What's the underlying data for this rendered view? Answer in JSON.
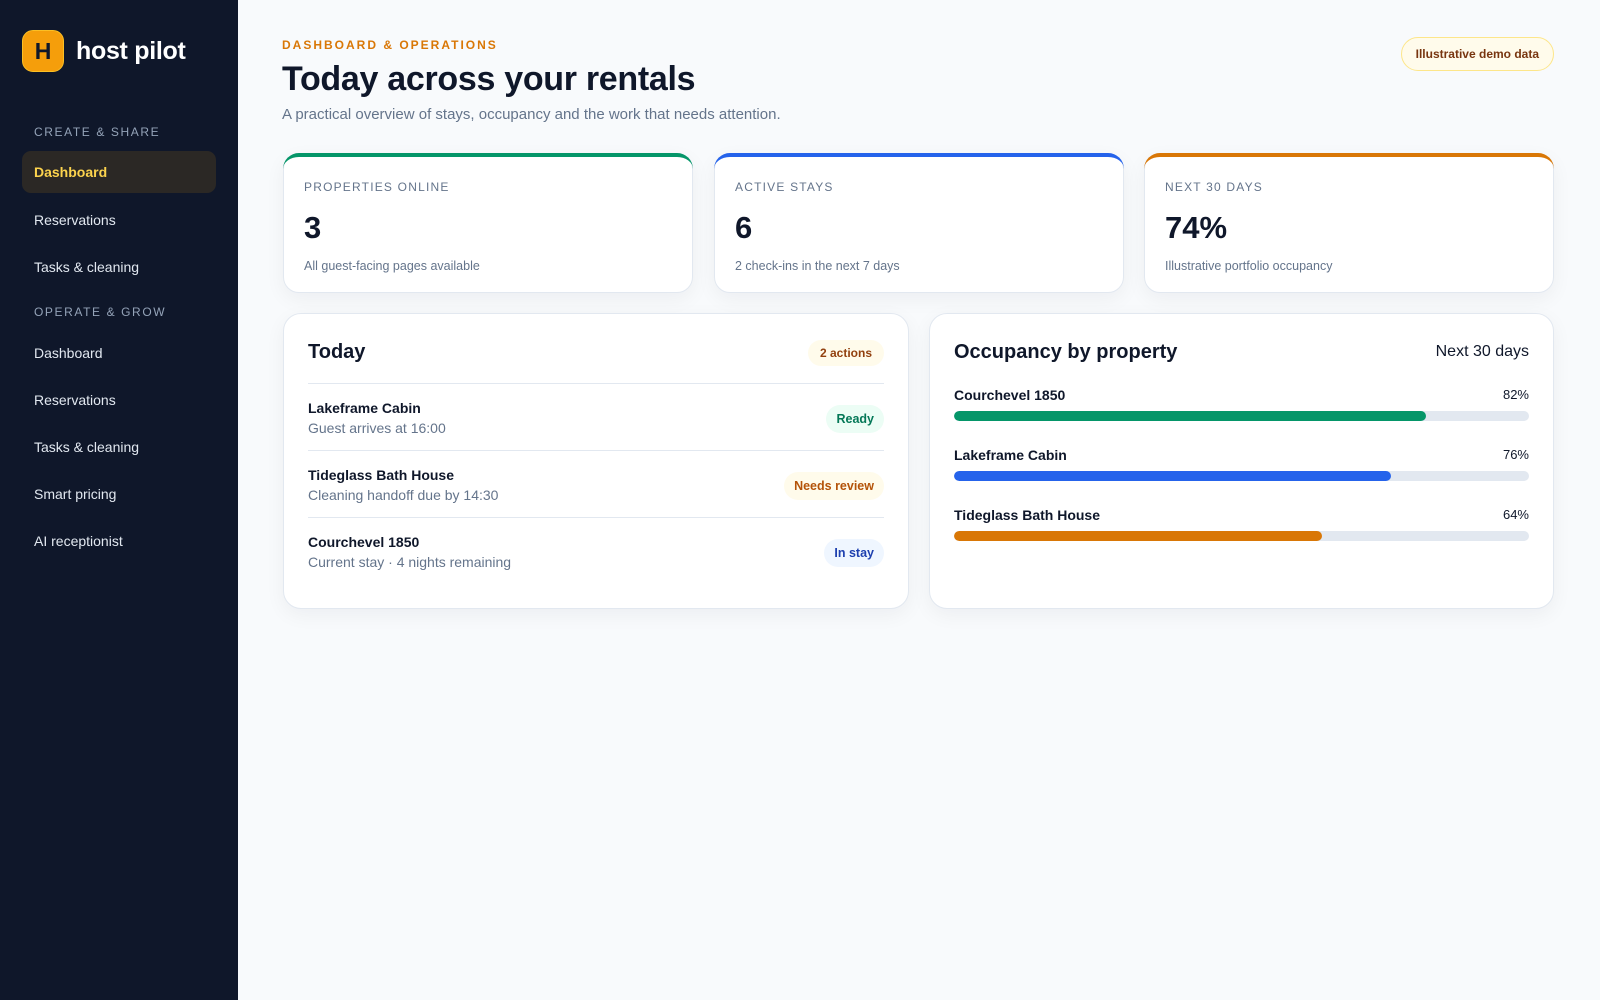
{
  "brand": {
    "logo_letter": "H",
    "name": "host pilot",
    "logo_color": "#f59e0b"
  },
  "sidebar": {
    "sections": [
      {
        "label": "CREATE & SHARE",
        "items": [
          {
            "label": "Dashboard",
            "active": true
          },
          {
            "label": "Reservations",
            "active": false
          },
          {
            "label": "Tasks & cleaning",
            "active": false
          }
        ]
      },
      {
        "label": "OPERATE & GROW",
        "items": [
          {
            "label": "Dashboard",
            "active": false
          },
          {
            "label": "Reservations",
            "active": false
          },
          {
            "label": "Tasks & cleaning",
            "active": false
          },
          {
            "label": "Smart pricing",
            "active": false
          },
          {
            "label": "AI receptionist",
            "active": false
          }
        ]
      }
    ]
  },
  "header": {
    "eyebrow": "DASHBOARD & OPERATIONS",
    "title": "Today across your rentals",
    "subtitle": "A practical overview of stays, occupancy and the work that needs attention.",
    "demo_badge": "Illustrative demo data"
  },
  "stats": [
    {
      "label": "PROPERTIES ONLINE",
      "value": "3",
      "note": "All guest-facing pages available",
      "accent": "#059669"
    },
    {
      "label": "ACTIVE STAYS",
      "value": "6",
      "note": "2 check-ins in the next 7 days",
      "accent": "#2563eb"
    },
    {
      "label": "NEXT 30 DAYS",
      "value": "74%",
      "note": "Illustrative portfolio occupancy",
      "accent": "#d97706"
    }
  ],
  "today": {
    "title": "Today",
    "actions_label": "2 actions",
    "rows": [
      {
        "title": "Lakeframe Cabin",
        "subtitle": "Guest arrives at 16:00",
        "status": "Ready",
        "status_color": "#047857",
        "status_bg": "#ecfdf5"
      },
      {
        "title": "Tideglass Bath House",
        "subtitle": "Cleaning handoff due by 14:30",
        "status": "Needs review",
        "status_color": "#b45309",
        "status_bg": "#fffbeb"
      },
      {
        "title": "Courchevel 1850",
        "subtitle": "Current stay · 4 nights remaining",
        "status": "In stay",
        "status_color": "#1e40af",
        "status_bg": "#eff6ff"
      }
    ]
  },
  "occupancy": {
    "title": "Occupancy by property",
    "period": "Next 30 days",
    "rows": [
      {
        "name": "Courchevel 1850",
        "percent_label": "82%",
        "value": 82,
        "color": "#059669"
      },
      {
        "name": "Lakeframe Cabin",
        "percent_label": "76%",
        "value": 76,
        "color": "#2563eb"
      },
      {
        "name": "Tideglass Bath House",
        "percent_label": "64%",
        "value": 64,
        "color": "#d97706"
      }
    ]
  }
}
